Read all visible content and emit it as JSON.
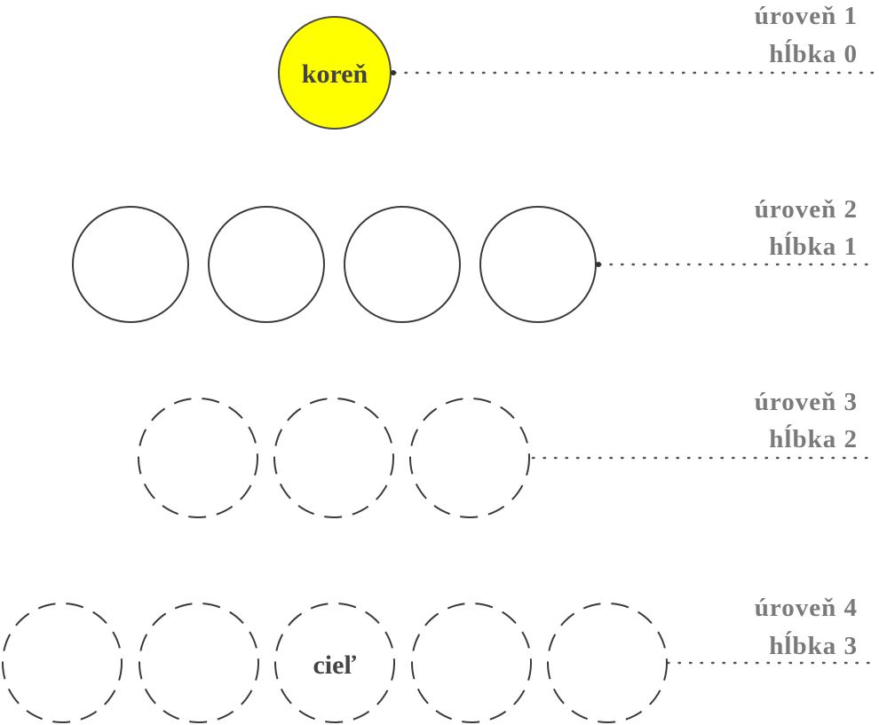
{
  "diagram": {
    "title": "",
    "root": {
      "label": "koreň",
      "color": "#ffff00"
    },
    "goal": {
      "label": "cieľ"
    },
    "levels": [
      {
        "level_label": "úroveň 1",
        "depth_label": "hĺbka 0",
        "node_count": 1,
        "node_style": "filled"
      },
      {
        "level_label": "úroveň 2",
        "depth_label": "hĺbka 1",
        "node_count": 4,
        "node_style": "solid"
      },
      {
        "level_label": "úroveň 3",
        "depth_label": "hĺbka 2",
        "node_count": 3,
        "node_style": "dashed"
      },
      {
        "level_label": "úroveň 4",
        "depth_label": "hĺbka 3",
        "node_count": 5,
        "node_style": "dashed"
      }
    ],
    "colors": {
      "label_text": "#7a7a7a",
      "outline": "#3a3a3a",
      "root_fill": "#ffff00"
    }
  }
}
